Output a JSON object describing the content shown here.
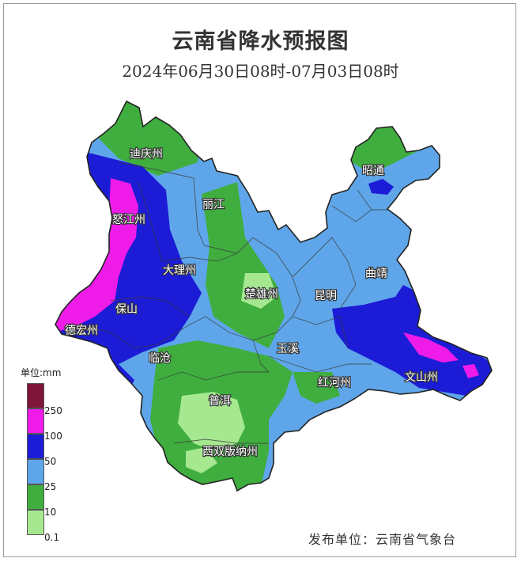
{
  "title": "云南省降水预报图",
  "subtitle": "2024年06月30日08时-07月03日08时",
  "legend": {
    "unit": "单位:mm",
    "classes": [
      {
        "label": "",
        "color": "#7f1538"
      },
      {
        "label": "250",
        "color": "#ee1be9"
      },
      {
        "label": "100",
        "color": "#1c1cd6"
      },
      {
        "label": "50",
        "color": "#5ea6e9"
      },
      {
        "label": "25",
        "color": "#3fae3f"
      },
      {
        "label": "10",
        "color": "#a6e890"
      },
      {
        "label": "0.1",
        "color": ""
      }
    ]
  },
  "cities": [
    "迪庆州",
    "丽江",
    "怒江州",
    "大理州",
    "保山",
    "德宏州",
    "临沧",
    "楚雄州",
    "昆明",
    "曲靖",
    "昭通",
    "玉溪",
    "红河州",
    "文山州",
    "普洱",
    "西双版纳州"
  ],
  "publisher": "发布单位：云南省气象台"
}
